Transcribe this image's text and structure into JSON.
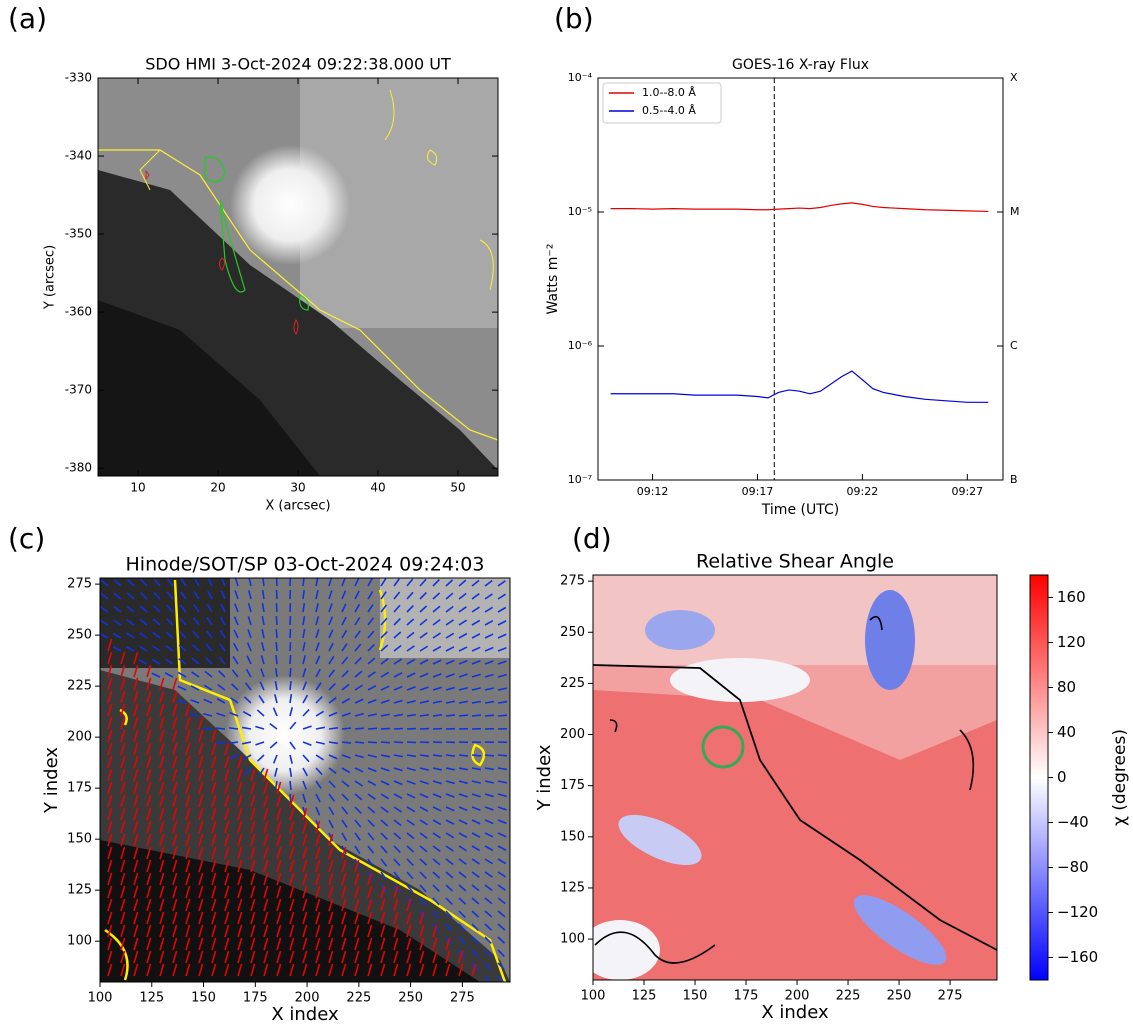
{
  "chart_data": [
    {
      "type": "image",
      "panel_label": "(a)",
      "title": "SDO HMI  3-Oct-2024 09:22:38.000 UT",
      "x_label": "X (arcsec)",
      "y_label": "Y (arcsec)",
      "xlim": [
        5,
        55
      ],
      "ylim": [
        -381,
        -330
      ],
      "xticks": [
        10,
        20,
        30,
        40,
        50
      ],
      "yticks": [
        -380,
        -370,
        -360,
        -350,
        -340,
        -330
      ]
    },
    {
      "type": "line",
      "panel_label": "(b)",
      "title": "GOES-16 X-ray Flux",
      "x_label": "Time (UTC)",
      "y_label": "Watts m⁻²",
      "log_y": true,
      "legend": "upper left",
      "xlim": [
        9.4,
        28.7
      ],
      "ylim": [
        1e-07,
        0.0001
      ],
      "xticks": [
        {
          "value": 12,
          "label": "09:12"
        },
        {
          "value": 17,
          "label": "09:17"
        },
        {
          "value": 22,
          "label": "09:22"
        },
        {
          "value": 27,
          "label": "09:27"
        }
      ],
      "yticks": [
        {
          "value": 1e-07,
          "label": "10⁻⁷"
        },
        {
          "value": 1e-06,
          "label": "10⁻⁶"
        },
        {
          "value": 1e-05,
          "label": "10⁻⁵"
        },
        {
          "value": 0.0001,
          "label": "10⁻⁴"
        }
      ],
      "y2lim": [
        1e-07,
        0.0001
      ],
      "y2ticks": [
        {
          "value": 1e-07,
          "label": "B"
        },
        {
          "value": 1e-06,
          "label": "C"
        },
        {
          "value": 1e-05,
          "label": "M"
        },
        {
          "value": 0.0001,
          "label": "X"
        }
      ],
      "vline": 17.8,
      "x": [
        10,
        11,
        12,
        13,
        14,
        15,
        16,
        17,
        17.5,
        18,
        18.5,
        19,
        19.5,
        20,
        20.5,
        21,
        21.5,
        22,
        22.5,
        23,
        24,
        25,
        26,
        27,
        28
      ],
      "series": [
        {
          "name": "1.0--8.0 Å",
          "color": "#e00000",
          "values": [
            1.06e-05,
            1.06e-05,
            1.05e-05,
            1.06e-05,
            1.05e-05,
            1.05e-05,
            1.05e-05,
            1.04e-05,
            1.04e-05,
            1.05e-05,
            1.06e-05,
            1.07e-05,
            1.06e-05,
            1.08e-05,
            1.12e-05,
            1.15e-05,
            1.17e-05,
            1.14e-05,
            1.1e-05,
            1.08e-05,
            1.06e-05,
            1.04e-05,
            1.03e-05,
            1.02e-05,
            1.01e-05
          ]
        },
        {
          "name": "0.5--4.0 Å",
          "color": "#0000e0",
          "values": [
            4.4e-07,
            4.4e-07,
            4.4e-07,
            4.4e-07,
            4.3e-07,
            4.3e-07,
            4.3e-07,
            4.2e-07,
            4.1e-07,
            4.5e-07,
            4.7e-07,
            4.6e-07,
            4.4e-07,
            4.6e-07,
            5.2e-07,
            5.9e-07,
            6.5e-07,
            5.6e-07,
            4.8e-07,
            4.5e-07,
            4.2e-07,
            4e-07,
            3.9e-07,
            3.8e-07,
            3.8e-07
          ]
        }
      ]
    },
    {
      "type": "image",
      "panel_label": "(c)",
      "title": "Hinode/SOT/SP 03-Oct-2024 09:24:03",
      "x_label": "X index",
      "y_label": "Y index",
      "xlim": [
        100,
        298
      ],
      "ylim": [
        80,
        278
      ],
      "xticks": [
        100,
        125,
        150,
        175,
        200,
        225,
        250,
        275
      ],
      "yticks": [
        100,
        125,
        150,
        175,
        200,
        225,
        250,
        275
      ]
    },
    {
      "type": "image",
      "panel_label": "(d)",
      "title": "Relative Shear Angle",
      "x_label": "X index",
      "y_label": "Y index",
      "xlim": [
        100,
        298
      ],
      "ylim": [
        80,
        278
      ],
      "xticks": [
        100,
        125,
        150,
        175,
        200,
        225,
        250,
        275
      ],
      "yticks": [
        100,
        125,
        150,
        175,
        200,
        225,
        250,
        275
      ],
      "colorbar": {
        "label": "χ (degrees)",
        "lim": [
          -180,
          180
        ],
        "ticks": [
          {
            "value": -160,
            "label": "−160"
          },
          {
            "value": -120,
            "label": "−120"
          },
          {
            "value": -80,
            "label": "−80"
          },
          {
            "value": -40,
            "label": "−40"
          },
          0,
          40,
          80,
          120,
          160
        ]
      }
    }
  ]
}
